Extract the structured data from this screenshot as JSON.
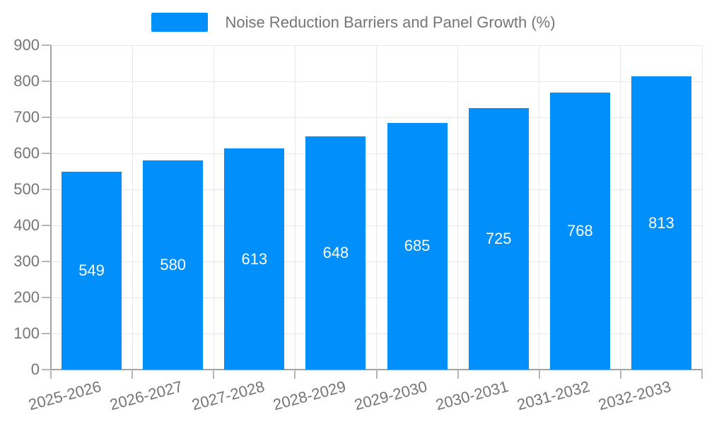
{
  "legend": {
    "label": "Noise Reduction Barriers and Panel Growth (%)"
  },
  "colors": {
    "bar": "#008FFB",
    "grid": "#e7e7e7",
    "axis_line": "#a3a3a3",
    "tick": "#b6b6b6",
    "axis_label": "#757575",
    "value_label": "#ffffff",
    "background": "#ffffff"
  },
  "chart_data": {
    "type": "bar",
    "title": "Noise Reduction Barriers and Panel Growth (%)",
    "categories": [
      "2025-2026",
      "2026-2027",
      "2027-2028",
      "2028-2029",
      "2029-2030",
      "2030-2031",
      "2031-2032",
      "2032-2033"
    ],
    "series": [
      {
        "name": "Noise Reduction Barriers and Panel Growth (%)",
        "values": [
          549,
          580,
          613,
          648,
          685,
          725,
          768,
          813
        ]
      }
    ],
    "bar_value_labels": [
      "549",
      "580",
      "613",
      "648",
      "685",
      "725",
      "768",
      "813"
    ],
    "xlabel": "",
    "ylabel": "",
    "ylim": [
      0,
      900
    ],
    "yticks": [
      0,
      100,
      200,
      300,
      400,
      500,
      600,
      700,
      800,
      900
    ],
    "grid": true,
    "legend_position": "top",
    "value_label_position": "center-inside",
    "x_label_rotation_deg": -15
  }
}
